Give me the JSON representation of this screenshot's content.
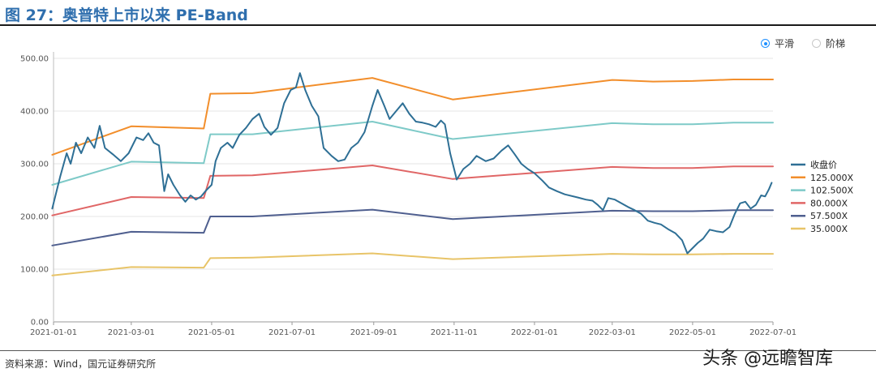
{
  "figure": {
    "title": "图 27：奥普特上市以来 PE-Band",
    "source": "资料来源：Wind，国元证券研究所",
    "watermark": "头条 @远瞻智库"
  },
  "toggle": {
    "smooth_label": "平滑",
    "step_label": "阶梯",
    "selected": "smooth"
  },
  "chart_data": {
    "type": "line",
    "title": "",
    "xlabel": "",
    "ylabel": "",
    "xlim": [
      "2021-01-01",
      "2022-07-01"
    ],
    "ylim": [
      0,
      500
    ],
    "y_ticks": [
      0,
      100,
      200,
      300,
      400,
      500
    ],
    "y_tick_labels": [
      "0.00",
      "100.00",
      "200.00",
      "300.00",
      "400.00",
      "500.00"
    ],
    "x_tick_labels": [
      "2021-01-01",
      "2021-03-01",
      "2021-05-01",
      "2021-07-01",
      "2021-09-01",
      "2021-11-01",
      "2022-01-01",
      "2022-03-01",
      "2022-05-01",
      "2022-07-01"
    ],
    "grid": "horizontal",
    "legend_position": "right",
    "series": [
      {
        "name": "收盘价",
        "color": "#2e6f95",
        "points": [
          [
            "2020-12-31",
            215
          ],
          [
            "2021-01-06",
            275
          ],
          [
            "2021-01-11",
            320
          ],
          [
            "2021-01-14",
            300
          ],
          [
            "2021-01-18",
            340
          ],
          [
            "2021-01-22",
            320
          ],
          [
            "2021-01-27",
            350
          ],
          [
            "2021-02-01",
            330
          ],
          [
            "2021-02-05",
            372
          ],
          [
            "2021-02-09",
            330
          ],
          [
            "2021-02-15",
            318
          ],
          [
            "2021-02-21",
            305
          ],
          [
            "2021-02-27",
            320
          ],
          [
            "2021-03-05",
            350
          ],
          [
            "2021-03-10",
            345
          ],
          [
            "2021-03-14",
            358
          ],
          [
            "2021-03-18",
            340
          ],
          [
            "2021-03-22",
            335
          ],
          [
            "2021-03-26",
            248
          ],
          [
            "2021-03-29",
            280
          ],
          [
            "2021-04-02",
            260
          ],
          [
            "2021-04-07",
            240
          ],
          [
            "2021-04-11",
            228
          ],
          [
            "2021-04-15",
            240
          ],
          [
            "2021-04-19",
            232
          ],
          [
            "2021-04-23",
            238
          ],
          [
            "2021-04-27",
            250
          ],
          [
            "2021-05-01",
            260
          ],
          [
            "2021-05-04",
            305
          ],
          [
            "2021-05-08",
            330
          ],
          [
            "2021-05-13",
            340
          ],
          [
            "2021-05-17",
            330
          ],
          [
            "2021-05-22",
            355
          ],
          [
            "2021-05-27",
            368
          ],
          [
            "2021-06-01",
            385
          ],
          [
            "2021-06-06",
            395
          ],
          [
            "2021-06-10",
            370
          ],
          [
            "2021-06-15",
            355
          ],
          [
            "2021-06-20",
            368
          ],
          [
            "2021-06-25",
            415
          ],
          [
            "2021-06-30",
            440
          ],
          [
            "2021-07-04",
            445
          ],
          [
            "2021-07-07",
            472
          ],
          [
            "2021-07-11",
            440
          ],
          [
            "2021-07-16",
            410
          ],
          [
            "2021-07-21",
            390
          ],
          [
            "2021-07-25",
            330
          ],
          [
            "2021-07-31",
            315
          ],
          [
            "2021-08-05",
            305
          ],
          [
            "2021-08-10",
            308
          ],
          [
            "2021-08-15",
            330
          ],
          [
            "2021-08-20",
            340
          ],
          [
            "2021-08-25",
            360
          ],
          [
            "2021-08-31",
            410
          ],
          [
            "2021-09-04",
            440
          ],
          [
            "2021-09-09",
            410
          ],
          [
            "2021-09-13",
            385
          ],
          [
            "2021-09-18",
            400
          ],
          [
            "2021-09-23",
            415
          ],
          [
            "2021-09-28",
            395
          ],
          [
            "2021-10-03",
            380
          ],
          [
            "2021-10-08",
            378
          ],
          [
            "2021-10-13",
            375
          ],
          [
            "2021-10-18",
            370
          ],
          [
            "2021-10-22",
            382
          ],
          [
            "2021-10-25",
            375
          ],
          [
            "2021-10-29",
            320
          ],
          [
            "2021-11-03",
            270
          ],
          [
            "2021-11-08",
            290
          ],
          [
            "2021-11-13",
            300
          ],
          [
            "2021-11-18",
            315
          ],
          [
            "2021-11-25",
            305
          ],
          [
            "2021-12-01",
            310
          ],
          [
            "2021-12-07",
            325
          ],
          [
            "2021-12-12",
            335
          ],
          [
            "2021-12-17",
            318
          ],
          [
            "2021-12-22",
            300
          ],
          [
            "2021-12-27",
            290
          ],
          [
            "2022-01-01",
            282
          ],
          [
            "2022-01-07",
            268
          ],
          [
            "2022-01-12",
            255
          ],
          [
            "2022-01-18",
            248
          ],
          [
            "2022-01-24",
            242
          ],
          [
            "2022-02-03",
            236
          ],
          [
            "2022-02-09",
            232
          ],
          [
            "2022-02-14",
            230
          ],
          [
            "2022-02-18",
            222
          ],
          [
            "2022-02-22",
            212
          ],
          [
            "2022-02-26",
            235
          ],
          [
            "2022-03-03",
            232
          ],
          [
            "2022-03-08",
            225
          ],
          [
            "2022-03-13",
            218
          ],
          [
            "2022-03-18",
            212
          ],
          [
            "2022-03-23",
            205
          ],
          [
            "2022-03-28",
            192
          ],
          [
            "2022-04-02",
            188
          ],
          [
            "2022-04-07",
            185
          ],
          [
            "2022-04-13",
            175
          ],
          [
            "2022-04-18",
            168
          ],
          [
            "2022-04-23",
            155
          ],
          [
            "2022-04-27",
            130
          ],
          [
            "2022-05-01",
            140
          ],
          [
            "2022-05-05",
            150
          ],
          [
            "2022-05-09",
            158
          ],
          [
            "2022-05-14",
            175
          ],
          [
            "2022-05-19",
            172
          ],
          [
            "2022-05-24",
            170
          ],
          [
            "2022-05-29",
            180
          ],
          [
            "2022-06-02",
            205
          ],
          [
            "2022-06-06",
            225
          ],
          [
            "2022-06-10",
            228
          ],
          [
            "2022-06-14",
            215
          ],
          [
            "2022-06-18",
            222
          ],
          [
            "2022-06-22",
            240
          ],
          [
            "2022-06-25",
            238
          ],
          [
            "2022-06-28",
            252
          ],
          [
            "2022-06-30",
            264
          ]
        ]
      },
      {
        "name": "125.000X",
        "color": "#f28e2b",
        "points": [
          [
            "2020-12-31",
            317
          ],
          [
            "2021-03-01",
            371
          ],
          [
            "2021-04-25",
            367
          ],
          [
            "2021-04-30",
            433
          ],
          [
            "2021-06-01",
            434
          ],
          [
            "2021-08-31",
            463
          ],
          [
            "2021-10-31",
            422
          ],
          [
            "2022-03-01",
            459
          ],
          [
            "2022-04-01",
            456
          ],
          [
            "2022-05-01",
            457
          ],
          [
            "2022-06-01",
            460
          ],
          [
            "2022-07-01",
            460
          ]
        ]
      },
      {
        "name": "102.500X",
        "color": "#7ecac8",
        "points": [
          [
            "2020-12-31",
            260
          ],
          [
            "2021-03-01",
            304
          ],
          [
            "2021-04-25",
            301
          ],
          [
            "2021-04-30",
            356
          ],
          [
            "2021-06-01",
            356
          ],
          [
            "2021-08-31",
            380
          ],
          [
            "2021-10-31",
            347
          ],
          [
            "2022-03-01",
            377
          ],
          [
            "2022-04-01",
            375
          ],
          [
            "2022-05-01",
            375
          ],
          [
            "2022-06-01",
            378
          ],
          [
            "2022-07-01",
            378
          ]
        ]
      },
      {
        "name": "80.000X",
        "color": "#e06666",
        "points": [
          [
            "2020-12-31",
            202
          ],
          [
            "2021-03-01",
            237
          ],
          [
            "2021-04-25",
            235
          ],
          [
            "2021-04-30",
            277
          ],
          [
            "2021-06-01",
            278
          ],
          [
            "2021-08-31",
            297
          ],
          [
            "2021-10-31",
            271
          ],
          [
            "2022-03-01",
            294
          ],
          [
            "2022-04-01",
            292
          ],
          [
            "2022-05-01",
            292
          ],
          [
            "2022-06-01",
            295
          ],
          [
            "2022-07-01",
            295
          ]
        ]
      },
      {
        "name": "57.500X",
        "color": "#4f5f8f",
        "points": [
          [
            "2020-12-31",
            145
          ],
          [
            "2021-03-01",
            171
          ],
          [
            "2021-04-25",
            169
          ],
          [
            "2021-04-30",
            200
          ],
          [
            "2021-06-01",
            200
          ],
          [
            "2021-08-31",
            213
          ],
          [
            "2021-10-31",
            195
          ],
          [
            "2022-03-01",
            211
          ],
          [
            "2022-04-01",
            210
          ],
          [
            "2022-05-01",
            210
          ],
          [
            "2022-06-01",
            212
          ],
          [
            "2022-07-01",
            212
          ]
        ]
      },
      {
        "name": "35.000X",
        "color": "#e8c468",
        "points": [
          [
            "2020-12-31",
            88
          ],
          [
            "2021-03-01",
            104
          ],
          [
            "2021-04-25",
            103
          ],
          [
            "2021-04-30",
            121
          ],
          [
            "2021-06-01",
            122
          ],
          [
            "2021-08-31",
            130
          ],
          [
            "2021-10-31",
            119
          ],
          [
            "2022-03-01",
            129
          ],
          [
            "2022-04-01",
            128
          ],
          [
            "2022-05-01",
            128
          ],
          [
            "2022-06-01",
            129
          ],
          [
            "2022-07-01",
            129
          ]
        ]
      }
    ]
  }
}
